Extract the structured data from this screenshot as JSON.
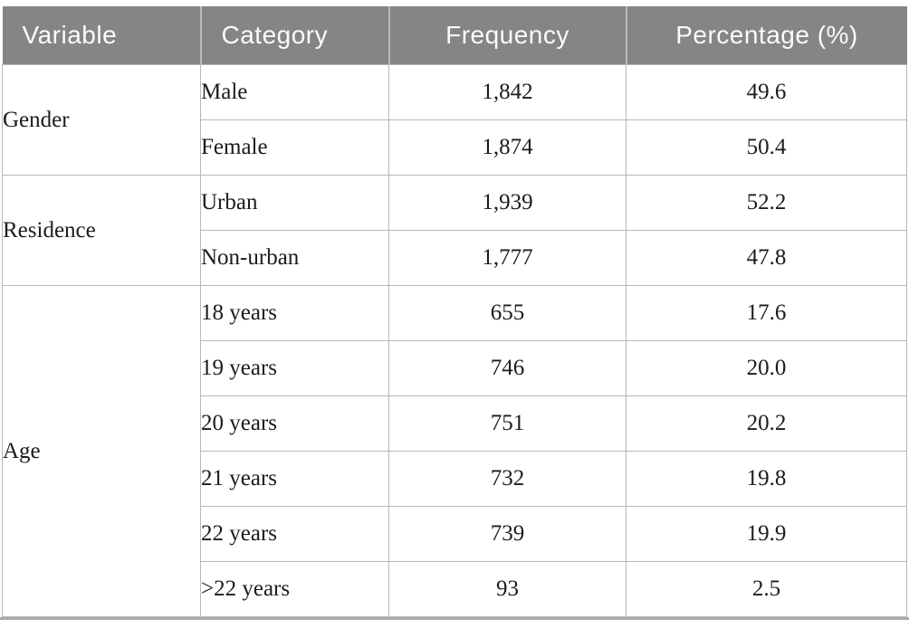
{
  "colors": {
    "page_bg": "#ffffff",
    "header_bg": "#858585",
    "header_text": "#fbfbfb",
    "header_divider": "#b9b9b9",
    "cell_border": "#b7b7b7",
    "body_text": "#1c1c1c",
    "bottom_rule": "#ababab"
  },
  "chart_data": {
    "type": "table",
    "title": "",
    "columns": [
      "Variable",
      "Category",
      "Frequency",
      "Percentage (%)"
    ],
    "rows": [
      [
        "Gender",
        "Male",
        "1,842",
        "49.6"
      ],
      [
        "Gender",
        "Female",
        "1,874",
        "50.4"
      ],
      [
        "Residence",
        "Urban",
        "1,939",
        "52.2"
      ],
      [
        "Residence",
        "Non-urban",
        "1,777",
        "47.8"
      ],
      [
        "Age",
        "18 years",
        "655",
        "17.6"
      ],
      [
        "Age",
        "19 years",
        "746",
        "20.0"
      ],
      [
        "Age",
        "20 years",
        "751",
        "20.2"
      ],
      [
        "Age",
        "21 years",
        "732",
        "19.8"
      ],
      [
        "Age",
        "22 years",
        "739",
        "19.9"
      ],
      [
        "Age",
        ">22 years",
        "93",
        "2.5"
      ]
    ]
  },
  "table": {
    "columns": [
      {
        "label": "Variable",
        "align": "left"
      },
      {
        "label": "Category",
        "align": "left"
      },
      {
        "label": "Frequency",
        "align": "center"
      },
      {
        "label": "Percentage (%)",
        "align": "center"
      }
    ],
    "groups": [
      {
        "variable": "Gender",
        "rows": [
          {
            "category": "Male",
            "frequency": "1,842",
            "percentage": "49.6"
          },
          {
            "category": "Female",
            "frequency": "1,874",
            "percentage": "50.4"
          }
        ]
      },
      {
        "variable": "Residence",
        "rows": [
          {
            "category": "Urban",
            "frequency": "1,939",
            "percentage": "52.2"
          },
          {
            "category": "Non-urban",
            "frequency": "1,777",
            "percentage": "47.8"
          }
        ]
      },
      {
        "variable": "Age",
        "rows": [
          {
            "category": "18 years",
            "frequency": "655",
            "percentage": "17.6"
          },
          {
            "category": "19 years",
            "frequency": "746",
            "percentage": "20.0"
          },
          {
            "category": "20 years",
            "frequency": "751",
            "percentage": "20.2"
          },
          {
            "category": "21 years",
            "frequency": "732",
            "percentage": "19.8"
          },
          {
            "category": "22 years",
            "frequency": "739",
            "percentage": "19.9"
          },
          {
            "category": ">22 years",
            "frequency": "93",
            "percentage": "2.5"
          }
        ]
      }
    ]
  }
}
